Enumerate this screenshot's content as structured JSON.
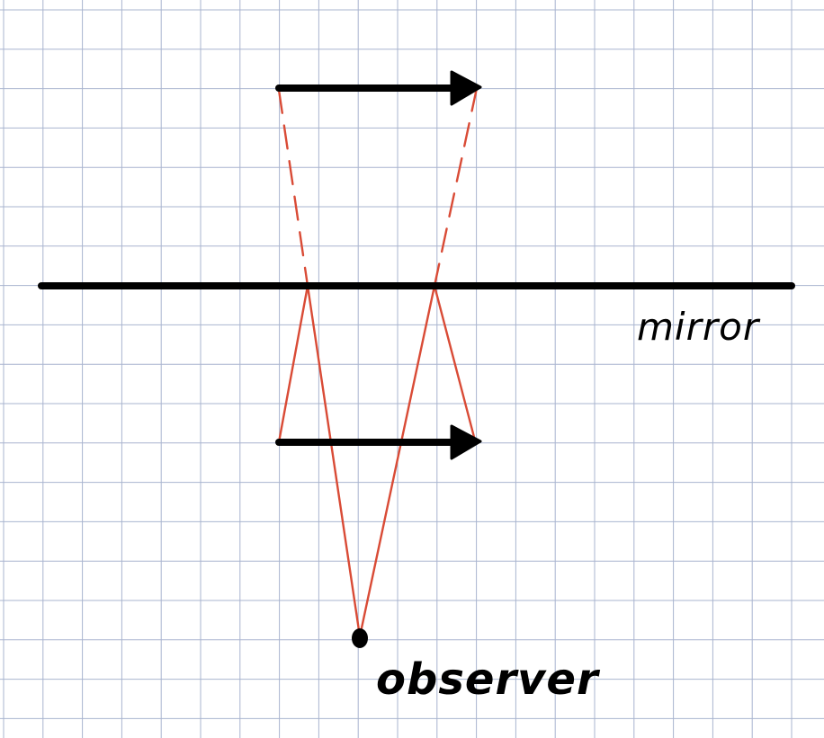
{
  "labels": {
    "mirror": "mirror",
    "observer": "observer"
  },
  "colors": {
    "grid": "#a9b4cf",
    "ink": "#000000",
    "ray": "#d94b36",
    "background": "#ffffff"
  }
}
